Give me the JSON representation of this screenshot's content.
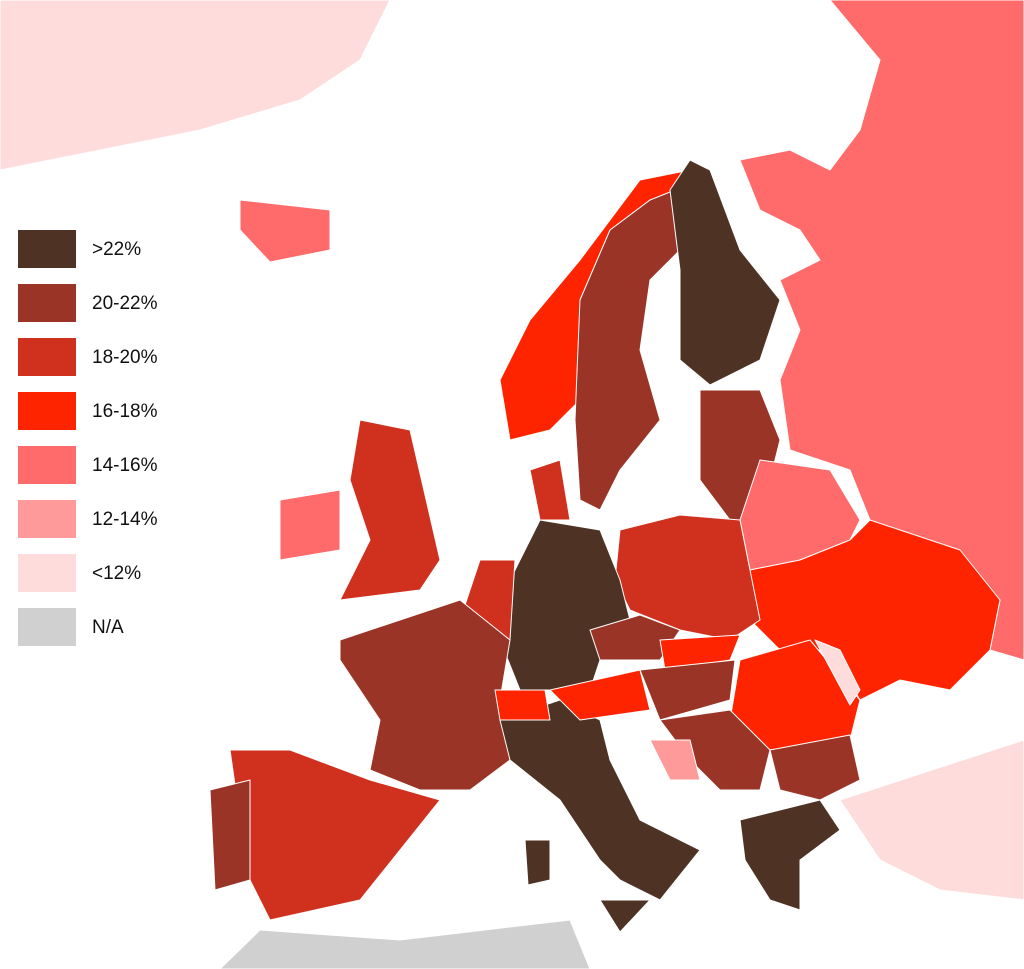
{
  "legend": [
    {
      "label": ">22%",
      "color": "#4e3325"
    },
    {
      "label": "20-22%",
      "color": "#9a3427"
    },
    {
      "label": "18-20%",
      "color": "#d0301e"
    },
    {
      "label": "16-18%",
      "color": "#ff2400"
    },
    {
      "label": "14-16%",
      "color": "#ff6a6a"
    },
    {
      "label": "12-14%",
      "color": "#ff9a9a"
    },
    {
      "label": "<12%",
      "color": "#ffdcdc"
    },
    {
      "label": "N/A",
      "color": "#d0d0d0"
    }
  ]
}
